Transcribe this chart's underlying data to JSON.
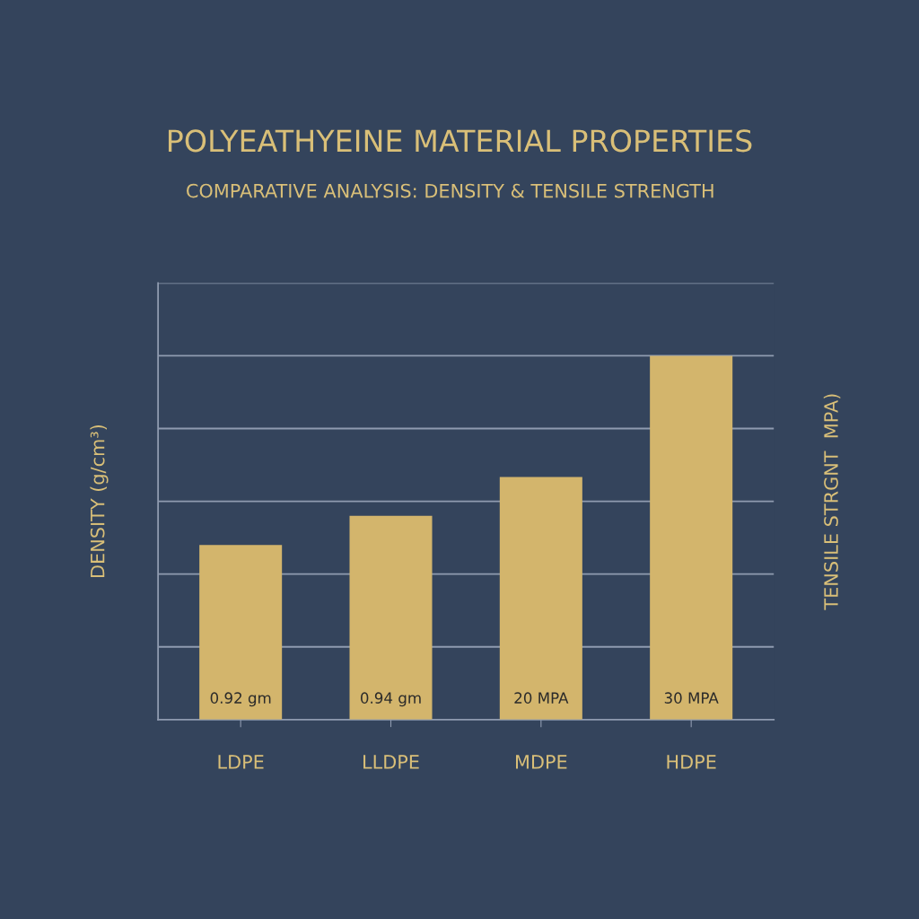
{
  "chart_data": {
    "type": "bar",
    "title": "POLYEATHYEINE MATERIAL PROPERTIES",
    "subtitle": "COMPARATIVE ANALYSIS: DENSITY & TENSILE STRENGTH",
    "ylabel": "DENSITY (g/cm³)",
    "y2label": "TENSILE STRGNT  MPA)",
    "categories": [
      "LDPE",
      "LLDPE",
      "MDPE",
      "HDPE"
    ],
    "series": [
      {
        "color": "#d3b56c",
        "values": [
          0.92,
          0.94,
          null,
          null
        ],
        "value_labels": [
          "0.92 gm",
          "0.94 gm",
          null,
          null
        ]
      },
      {
        "color": "#d3b56c",
        "axis": "y2",
        "values": [
          null,
          null,
          20,
          30
        ],
        "value_labels": [
          null,
          null,
          "20 MPA",
          "30 MPA"
        ]
      }
    ],
    "ylim": [
      0.8,
      1.1
    ],
    "yticks": [
      {
        "value": 0.8,
        "label": null
      },
      {
        "value": 0.85,
        "label": null
      },
      {
        "value": 0.9,
        "label": null
      },
      {
        "value": 0.95,
        "label": null
      },
      {
        "value": 1.0,
        "label": null
      },
      {
        "value": 1.05,
        "label": null
      },
      {
        "value": 1.1,
        "label": null
      }
    ],
    "y2lim": [
      0,
      36
    ],
    "tick_labels": "x",
    "grid": "y"
  }
}
